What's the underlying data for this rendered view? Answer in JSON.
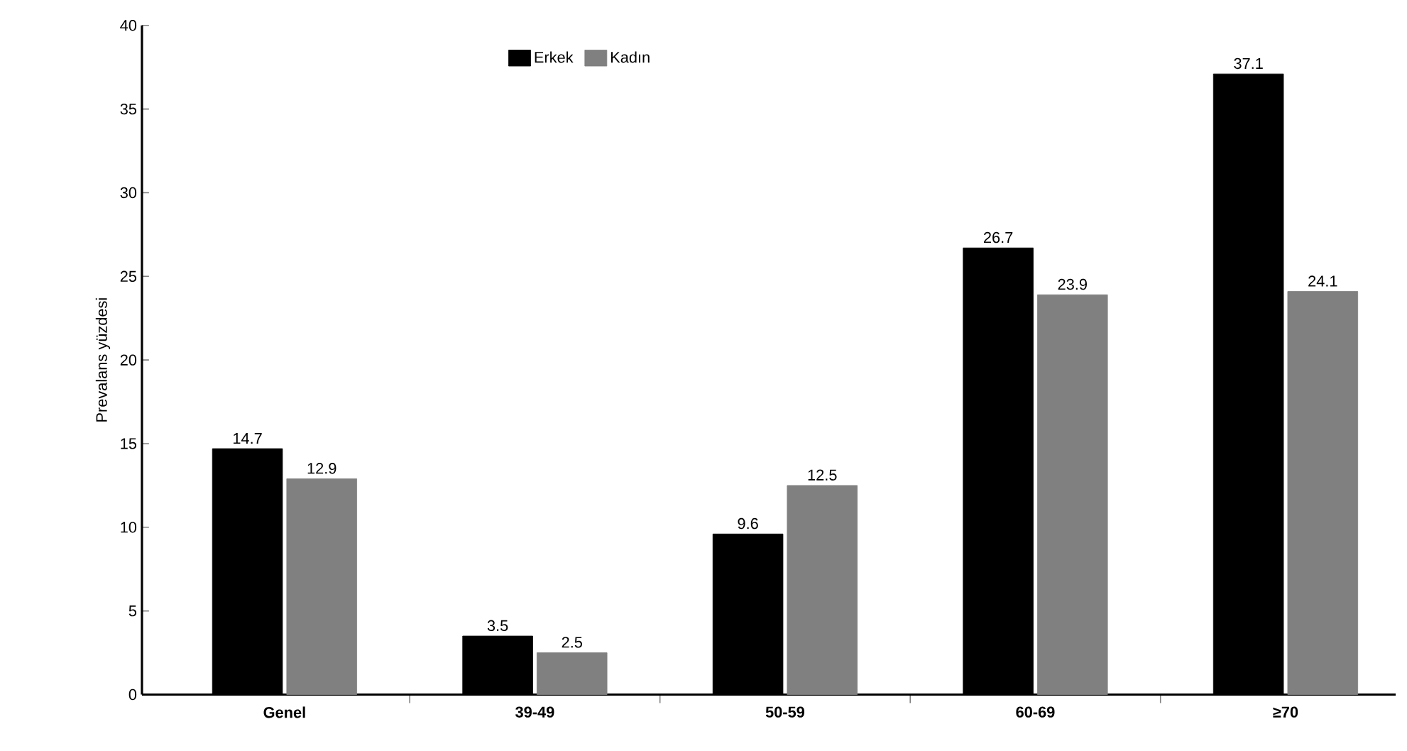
{
  "chart_data": {
    "type": "bar",
    "ylabel": "Prevalans yüzdesi",
    "categories": [
      "Genel",
      "39-49",
      "50-59",
      "60-69",
      "≥70"
    ],
    "series": [
      {
        "name": "Erkek",
        "color": "#000000",
        "values": [
          14.7,
          3.5,
          9.6,
          26.7,
          37.1
        ]
      },
      {
        "name": "Kadın",
        "color": "#808080",
        "values": [
          12.9,
          2.5,
          12.5,
          23.9,
          24.1
        ]
      }
    ],
    "ylim": [
      0,
      40
    ],
    "yticks": [
      0,
      5,
      10,
      15,
      20,
      25,
      30,
      35,
      40
    ],
    "data_labels": true,
    "legend": "top",
    "grid": false
  }
}
